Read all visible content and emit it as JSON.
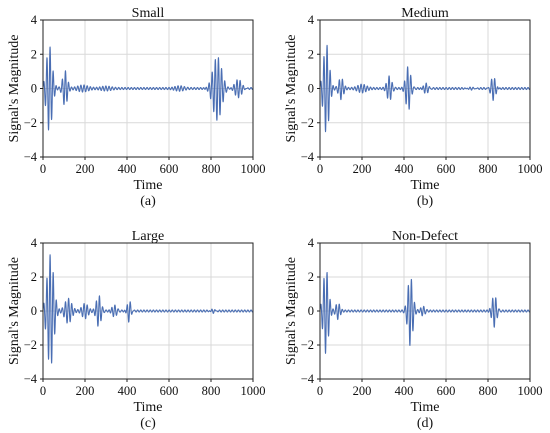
{
  "chart_data": [
    {
      "type": "line",
      "title": "Small",
      "caption": "(a)",
      "xlabel": "Time",
      "ylabel": "Signal's Magnitude",
      "xlim": [
        0,
        1000
      ],
      "ylim": [
        -4,
        4
      ],
      "xticks": [
        "0",
        "200",
        "400",
        "600",
        "800",
        "1000"
      ],
      "yticks": [
        "4",
        "2",
        "0",
        "−2",
        "−4"
      ],
      "grid": true,
      "wave_packets": [
        {
          "center": 30,
          "amplitude": 2.5,
          "width": 35
        },
        {
          "center": 105,
          "amplitude": 1.0,
          "width": 28
        },
        {
          "center": 190,
          "amplitude": 0.15,
          "width": 60
        },
        {
          "center": 300,
          "amplitude": 0.1,
          "width": 60
        },
        {
          "center": 650,
          "amplitude": 0.15,
          "width": 60
        },
        {
          "center": 830,
          "amplitude": 1.9,
          "width": 55
        },
        {
          "center": 930,
          "amplitude": 0.6,
          "width": 45
        }
      ]
    },
    {
      "type": "line",
      "title": "Medium",
      "caption": "(b)",
      "xlabel": "Time",
      "ylabel": "Signal's Magnitude",
      "xlim": [
        0,
        1000
      ],
      "ylim": [
        -4,
        4
      ],
      "xticks": [
        "0",
        "200",
        "400",
        "600",
        "800",
        "1000"
      ],
      "yticks": [
        "4",
        "2",
        "0",
        "−2",
        "−4"
      ],
      "grid": true,
      "wave_packets": [
        {
          "center": 30,
          "amplitude": 2.6,
          "width": 35
        },
        {
          "center": 100,
          "amplitude": 0.6,
          "width": 28
        },
        {
          "center": 200,
          "amplitude": 0.2,
          "width": 50
        },
        {
          "center": 330,
          "amplitude": 0.7,
          "width": 28
        },
        {
          "center": 420,
          "amplitude": 1.3,
          "width": 30
        },
        {
          "center": 505,
          "amplitude": 0.35,
          "width": 30
        },
        {
          "center": 720,
          "amplitude": 0.15,
          "width": 40
        },
        {
          "center": 825,
          "amplitude": 0.75,
          "width": 30
        }
      ]
    },
    {
      "type": "line",
      "title": "Large",
      "caption": "(c)",
      "xlabel": "Time",
      "ylabel": "Signal's Magnitude",
      "xlim": [
        0,
        1000
      ],
      "ylim": [
        -4,
        4
      ],
      "xticks": [
        "0",
        "200",
        "400",
        "600",
        "800",
        "1000"
      ],
      "yticks": [
        "4",
        "2",
        "0",
        "−2",
        "−4"
      ],
      "grid": true,
      "wave_packets": [
        {
          "center": 35,
          "amplitude": 3.3,
          "width": 40
        },
        {
          "center": 120,
          "amplitude": 0.7,
          "width": 40
        },
        {
          "center": 200,
          "amplitude": 0.4,
          "width": 35
        },
        {
          "center": 265,
          "amplitude": 0.9,
          "width": 28
        },
        {
          "center": 340,
          "amplitude": 0.35,
          "width": 30
        },
        {
          "center": 410,
          "amplitude": 0.7,
          "width": 22
        },
        {
          "center": 810,
          "amplitude": 0.2,
          "width": 25
        }
      ]
    },
    {
      "type": "line",
      "title": "Non-Defect",
      "caption": "(d)",
      "xlabel": "Time",
      "ylabel": "Signal's Magnitude",
      "xlim": [
        0,
        1000
      ],
      "ylim": [
        -4,
        4
      ],
      "xticks": [
        "0",
        "200",
        "400",
        "600",
        "800",
        "1000"
      ],
      "yticks": [
        "4",
        "2",
        "0",
        "−2",
        "−4"
      ],
      "grid": true,
      "wave_packets": [
        {
          "center": 28,
          "amplitude": 2.5,
          "width": 32
        },
        {
          "center": 85,
          "amplitude": 0.45,
          "width": 25
        },
        {
          "center": 430,
          "amplitude": 2.0,
          "width": 30
        },
        {
          "center": 490,
          "amplitude": 0.25,
          "width": 25
        },
        {
          "center": 830,
          "amplitude": 0.95,
          "width": 28
        }
      ]
    }
  ],
  "style": {
    "line_color": "#4a6eb3",
    "grid_color": "#d9d9d9"
  }
}
